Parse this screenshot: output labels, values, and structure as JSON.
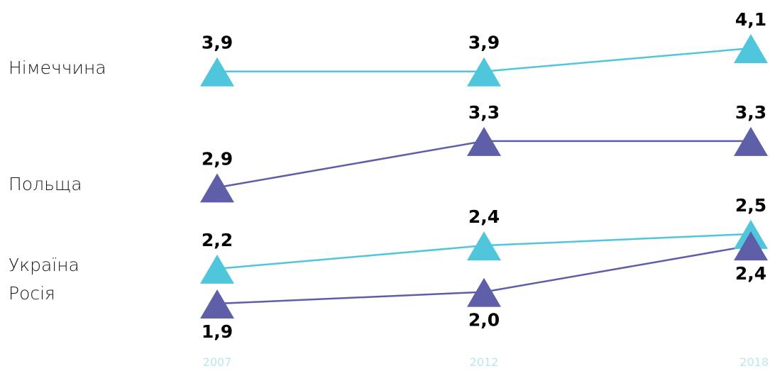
{
  "chart_data": {
    "type": "line",
    "x": [
      "2007",
      "2012",
      "2018"
    ],
    "series": [
      {
        "name": "Німеччина",
        "values": [
          3.9,
          3.9,
          4.1
        ],
        "labels": [
          "3,9",
          "3,9",
          "4,1"
        ],
        "color": "#4fc6dc"
      },
      {
        "name": "Польща",
        "values": [
          2.9,
          3.3,
          3.3
        ],
        "labels": [
          "2,9",
          "3,3",
          "3,3"
        ],
        "color": "#5f5ea8"
      },
      {
        "name": "Україна",
        "values": [
          2.2,
          2.4,
          2.5
        ],
        "labels": [
          "2,2",
          "2,4",
          "2,5"
        ],
        "color": "#4fc6dc"
      },
      {
        "name": "Росія",
        "values": [
          1.9,
          2.0,
          2.4
        ],
        "labels": [
          "1,9",
          "2,0",
          "2,4"
        ],
        "color": "#5f5ea8"
      }
    ],
    "marker": "triangle",
    "grid": false,
    "legend": "left"
  }
}
